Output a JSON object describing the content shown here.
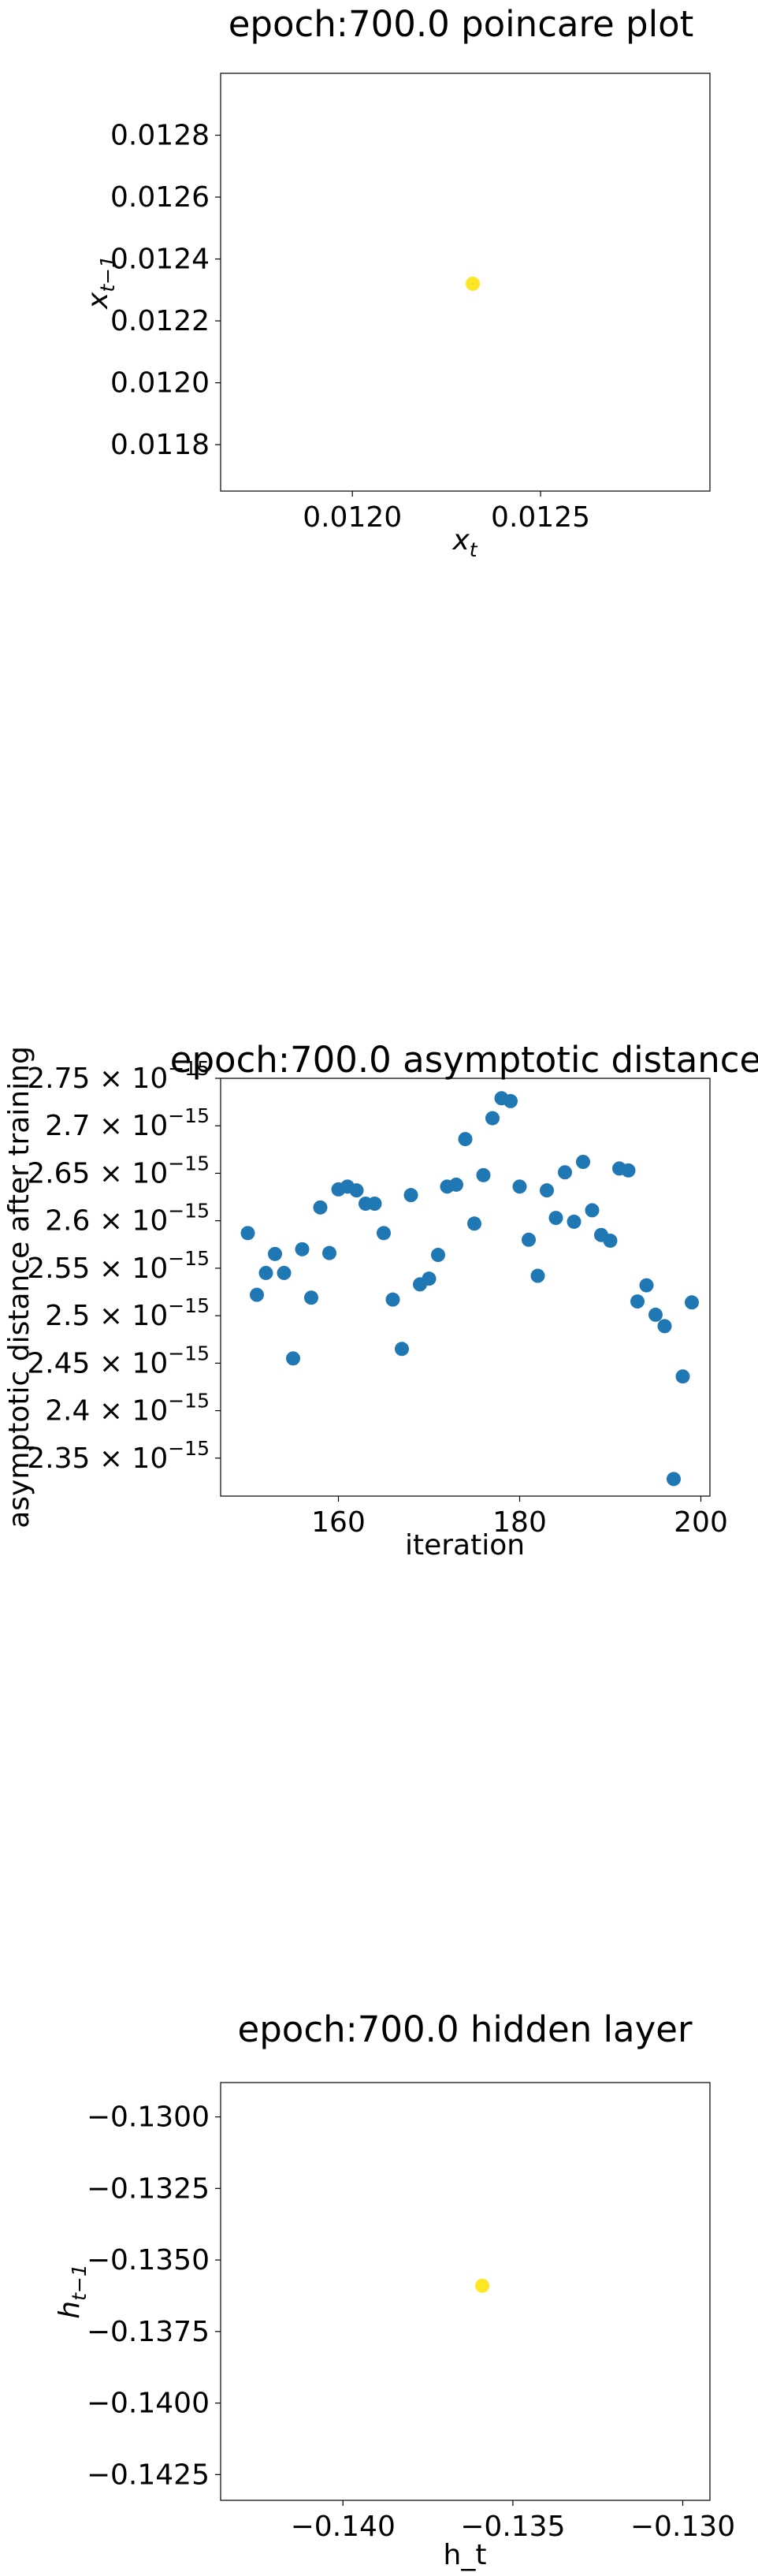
{
  "chart_data": [
    {
      "type": "scatter",
      "title": "epoch:700.0 poincare plot",
      "xlabel": "x",
      "xlabel_sub": "t",
      "ylabel": "x",
      "ylabel_sub": "t−1",
      "xlim": [
        0.01165,
        0.01295
      ],
      "ylim": [
        0.01165,
        0.013
      ],
      "xticks": [
        {
          "value": 0.012,
          "label": "0.0120"
        },
        {
          "value": 0.0125,
          "label": "0.0125"
        }
      ],
      "yticks": [
        {
          "value": 0.0118,
          "label": "0.0118"
        },
        {
          "value": 0.012,
          "label": "0.0120"
        },
        {
          "value": 0.0122,
          "label": "0.0122"
        },
        {
          "value": 0.0124,
          "label": "0.0124"
        },
        {
          "value": 0.0126,
          "label": "0.0126"
        },
        {
          "value": 0.0128,
          "label": "0.0128"
        }
      ],
      "points": [
        {
          "x": 0.01232,
          "y": 0.01232
        }
      ],
      "marker_color": "#fde725",
      "grid": false
    },
    {
      "type": "scatter",
      "title": "epoch:700.0 asymptotic distance",
      "xlabel": "iteration",
      "ylabel": "asymptotic distance after training",
      "xlim": [
        147,
        201
      ],
      "ylim": [
        2.31,
        2.75
      ],
      "y_scale_label": "× 10",
      "y_scale_exponent": "−15",
      "xticks": [
        {
          "value": 160,
          "label": "160"
        },
        {
          "value": 180,
          "label": "180"
        },
        {
          "value": 200,
          "label": "200"
        }
      ],
      "yticks": [
        {
          "value": 2.35,
          "label": "2.35"
        },
        {
          "value": 2.4,
          "label": "2.4"
        },
        {
          "value": 2.45,
          "label": "2.45"
        },
        {
          "value": 2.5,
          "label": "2.5"
        },
        {
          "value": 2.55,
          "label": "2.55"
        },
        {
          "value": 2.6,
          "label": "2.6"
        },
        {
          "value": 2.65,
          "label": "2.65"
        },
        {
          "value": 2.7,
          "label": "2.7"
        },
        {
          "value": 2.75,
          "label": "2.75"
        }
      ],
      "points": [
        {
          "x": 150,
          "y": 2.587
        },
        {
          "x": 151,
          "y": 2.522
        },
        {
          "x": 152,
          "y": 2.545
        },
        {
          "x": 153,
          "y": 2.565
        },
        {
          "x": 154,
          "y": 2.545
        },
        {
          "x": 155,
          "y": 2.455
        },
        {
          "x": 156,
          "y": 2.57
        },
        {
          "x": 157,
          "y": 2.519
        },
        {
          "x": 158,
          "y": 2.614
        },
        {
          "x": 159,
          "y": 2.566
        },
        {
          "x": 160,
          "y": 2.633
        },
        {
          "x": 161,
          "y": 2.636
        },
        {
          "x": 162,
          "y": 2.632
        },
        {
          "x": 163,
          "y": 2.618
        },
        {
          "x": 164,
          "y": 2.618
        },
        {
          "x": 165,
          "y": 2.587
        },
        {
          "x": 166,
          "y": 2.517
        },
        {
          "x": 167,
          "y": 2.465
        },
        {
          "x": 168,
          "y": 2.627
        },
        {
          "x": 169,
          "y": 2.533
        },
        {
          "x": 170,
          "y": 2.539
        },
        {
          "x": 171,
          "y": 2.564
        },
        {
          "x": 172,
          "y": 2.636
        },
        {
          "x": 173,
          "y": 2.638
        },
        {
          "x": 174,
          "y": 2.686
        },
        {
          "x": 175,
          "y": 2.597
        },
        {
          "x": 176,
          "y": 2.648
        },
        {
          "x": 177,
          "y": 2.708
        },
        {
          "x": 178,
          "y": 2.729
        },
        {
          "x": 179,
          "y": 2.726
        },
        {
          "x": 180,
          "y": 2.636
        },
        {
          "x": 181,
          "y": 2.58
        },
        {
          "x": 182,
          "y": 2.542
        },
        {
          "x": 183,
          "y": 2.632
        },
        {
          "x": 184,
          "y": 2.603
        },
        {
          "x": 185,
          "y": 2.651
        },
        {
          "x": 186,
          "y": 2.599
        },
        {
          "x": 187,
          "y": 2.662
        },
        {
          "x": 188,
          "y": 2.611
        },
        {
          "x": 189,
          "y": 2.585
        },
        {
          "x": 190,
          "y": 2.579
        },
        {
          "x": 191,
          "y": 2.655
        },
        {
          "x": 192,
          "y": 2.653
        },
        {
          "x": 193,
          "y": 2.515
        },
        {
          "x": 194,
          "y": 2.532
        },
        {
          "x": 195,
          "y": 2.501
        },
        {
          "x": 196,
          "y": 2.489
        },
        {
          "x": 197,
          "y": 2.328
        },
        {
          "x": 198,
          "y": 2.436
        },
        {
          "x": 199,
          "y": 2.514
        }
      ],
      "marker_color": "#1f77b4",
      "grid": false
    },
    {
      "type": "scatter",
      "title": "epoch:700.0 hidden layer",
      "xlabel": "h_t",
      "ylabel": "h",
      "ylabel_sub": "t−1",
      "xlim": [
        -0.1436,
        -0.1292
      ],
      "ylim": [
        -0.1434,
        -0.1288
      ],
      "xticks": [
        {
          "value": -0.14,
          "label": "−0.140"
        },
        {
          "value": -0.135,
          "label": "−0.135"
        },
        {
          "value": -0.13,
          "label": "−0.130"
        }
      ],
      "yticks": [
        {
          "value": -0.1425,
          "label": "−0.1425"
        },
        {
          "value": -0.14,
          "label": "−0.1400"
        },
        {
          "value": -0.1375,
          "label": "−0.1375"
        },
        {
          "value": -0.135,
          "label": "−0.1350"
        },
        {
          "value": -0.1325,
          "label": "−0.1325"
        },
        {
          "value": -0.13,
          "label": "−0.1300"
        }
      ],
      "points": [
        {
          "x": -0.1359,
          "y": -0.1359
        }
      ],
      "marker_color": "#fde725",
      "grid": false
    }
  ]
}
